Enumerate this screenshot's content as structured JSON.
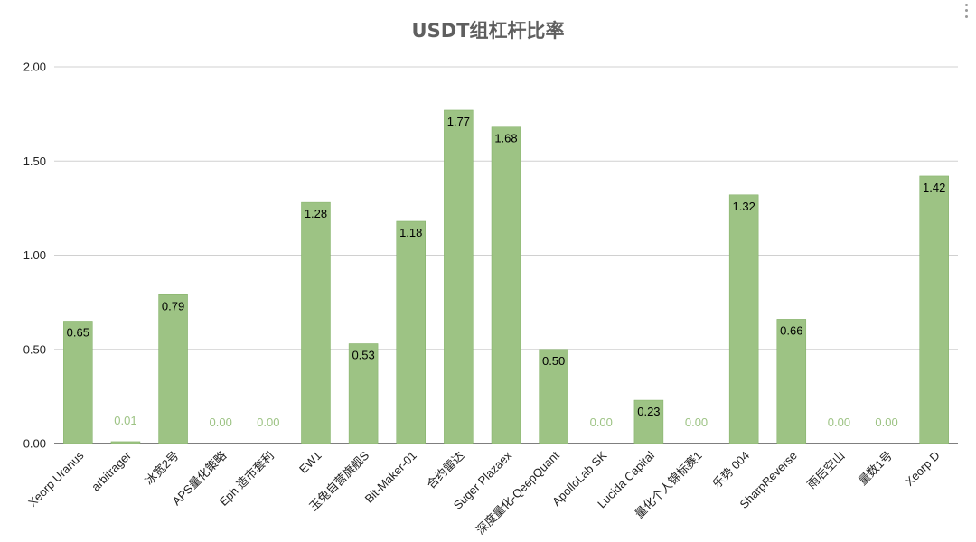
{
  "chart_data": {
    "type": "bar",
    "title": "USDT组杠杆比率",
    "xlabel": "",
    "ylabel": "",
    "ylim": [
      0,
      2
    ],
    "yticks": [
      "0.00",
      "0.50",
      "1.00",
      "1.50",
      "2.00"
    ],
    "grid": true,
    "legend": "none",
    "categories": [
      "Xeorp Uranus",
      "arbitrager",
      "冰宽2号",
      "APS量化策略",
      "Eph 造市套利",
      "EW1",
      "玉兔自营旗舰S",
      "Bit-Maker-01",
      "合约雷达",
      "Suger Plazaex",
      "深度量化-QeepQuant",
      "ApolloLab SK",
      "Lucida Capital",
      "量化个人锦标赛1",
      "乐势 004",
      "SharpReverse",
      "雨后空山",
      "量数1号",
      "Xeorp D"
    ],
    "series": [
      {
        "values": [
          0.65,
          0.01,
          0.79,
          0.0,
          0.0,
          1.28,
          0.53,
          1.18,
          1.77,
          1.68,
          0.5,
          0.0,
          0.23,
          0.0,
          1.32,
          0.66,
          0.0,
          0.0,
          1.42
        ],
        "labels": [
          "0.65",
          "0.01",
          "0.79",
          "0.00",
          "0.00",
          "1.28",
          "0.53",
          "1.18",
          "1.77",
          "1.68",
          "0.50",
          "0.00",
          "0.23",
          "0.00",
          "1.32",
          "0.66",
          "0.00",
          "0.00",
          "1.42"
        ],
        "color": "#9dc384"
      }
    ],
    "colors": {
      "bar": "#9dc384",
      "bar_stroke": "#7fae63",
      "inside_label": "#000000",
      "outside_label": "#9dc384",
      "grid": "#d0d0d0",
      "axis": "#333333"
    }
  }
}
